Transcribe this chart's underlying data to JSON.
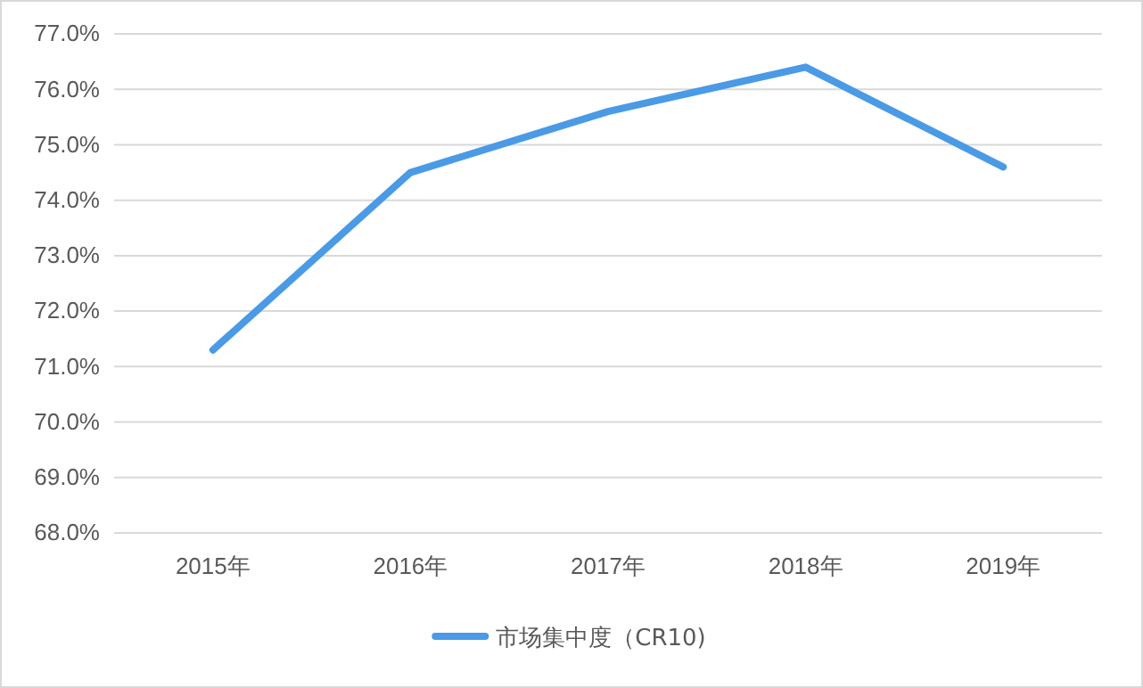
{
  "chart_data": {
    "type": "line",
    "categories": [
      "2015年",
      "2016年",
      "2017年",
      "2018年",
      "2019年"
    ],
    "series": [
      {
        "name": "市场集中度（CR10)",
        "color": "#4a9ae6",
        "values": [
          71.3,
          74.5,
          75.6,
          76.4,
          74.6
        ]
      }
    ],
    "ylim": [
      68,
      77
    ],
    "yticks": [
      {
        "value": 68,
        "label": "68.0%"
      },
      {
        "value": 69,
        "label": "69.0%"
      },
      {
        "value": 70,
        "label": "70.0%"
      },
      {
        "value": 71,
        "label": "71.0%"
      },
      {
        "value": 72,
        "label": "72.0%"
      },
      {
        "value": 73,
        "label": "73.0%"
      },
      {
        "value": 74,
        "label": "74.0%"
      },
      {
        "value": 75,
        "label": "75.0%"
      },
      {
        "value": 76,
        "label": "76.0%"
      },
      {
        "value": 77,
        "label": "77.0%"
      }
    ],
    "grid": "y",
    "legend": "bottom",
    "marker": "none",
    "line_style": "solid"
  }
}
